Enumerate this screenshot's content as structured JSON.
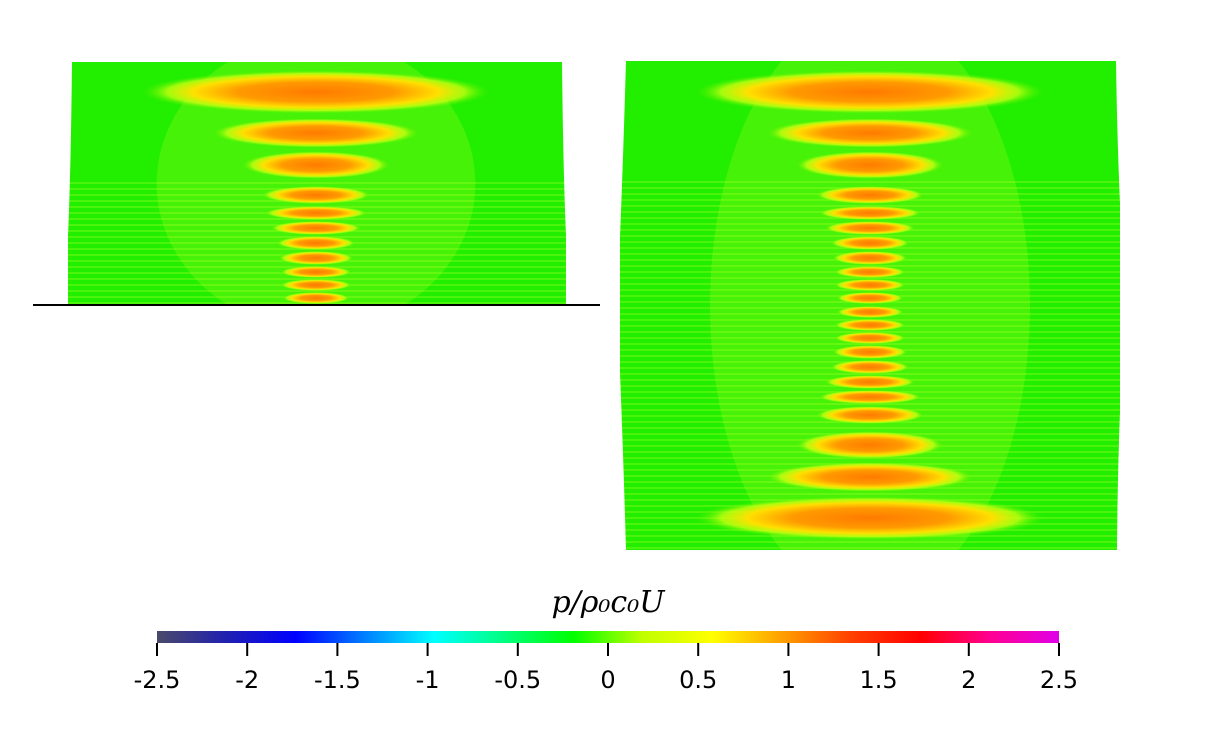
{
  "chart_data": {
    "type": "heatmap",
    "panels": [
      {
        "name": "",
        "description_colors": "pressure field, half domain above wall"
      },
      {
        "name": "",
        "description_colors": "pressure field, full symmetric domain"
      }
    ],
    "colorbar": {
      "label": "p/ρ₀c₀U",
      "label_parts": {
        "p": "p",
        "slash": "/",
        "rho": "ρ",
        "sub0a": "0",
        "c": "c",
        "sub0b": "0",
        "U": "U"
      },
      "range": [
        -2.5,
        2.5
      ],
      "ticks": [
        "-2.5",
        "-2",
        "-1.5",
        "-1",
        "-0.5",
        "0",
        "0.5",
        "1",
        "1.5",
        "2",
        "2.5"
      ],
      "colors": [
        "#4a4a6a",
        "#2020b0",
        "#0000ff",
        "#0080ff",
        "#00ffff",
        "#00ff80",
        "#00ff00",
        "#c0ff00",
        "#ffff00",
        "#ffa000",
        "#ff4000",
        "#ff0000",
        "#ff0090",
        "#e000e8"
      ]
    },
    "background_value_color": "#22ee00",
    "hotspot_color": "#ff8a00"
  }
}
